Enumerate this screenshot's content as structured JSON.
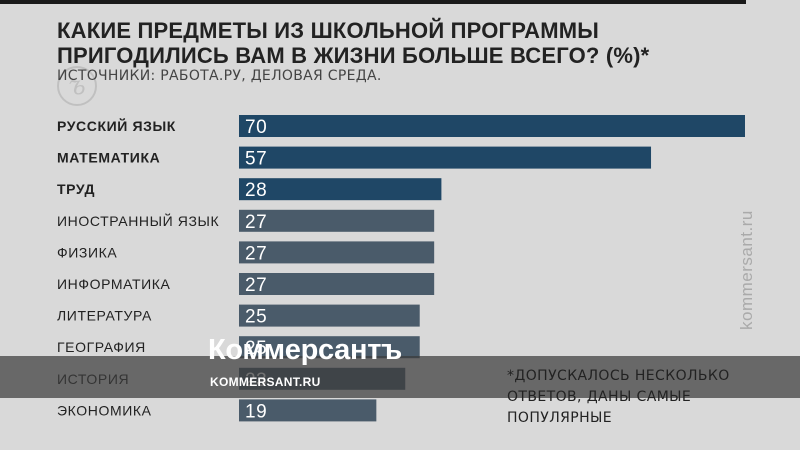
{
  "title_line1": "КАКИЕ ПРЕДМЕТЫ ИЗ ШКОЛЬНОЙ ПРОГРАММЫ",
  "title_line2": "ПРИГОДИЛИСЬ ВАМ В ЖИЗНИ БОЛЬШЕ ВСЕГО? (%)*",
  "subtitle": "ИСТОЧНИКИ: РАБОТА.РУ, ДЕЛОВАЯ СРЕДА.",
  "watermark_side": "kommersant.ru",
  "band": {
    "brand": "Коммерсантъ",
    "url": "KOMMERSANT.RU"
  },
  "footnote": [
    "*ДОПУСКАЛОСЬ НЕСКОЛЬКО",
    "ОТВЕТОВ, ДАНЫ САМЫЕ",
    "ПОПУЛЯРНЫЕ"
  ],
  "colors": {
    "top3": "#1f4766",
    "rest": "#4a5b6a"
  },
  "chart_data": {
    "type": "bar",
    "orientation": "horizontal",
    "categories": [
      "РУССКИЙ ЯЗЫК",
      "МАТЕМАТИКА",
      "ТРУД",
      "ИНОСТРАННЫЙ ЯЗЫК",
      "ФИЗИКА",
      "ИНФОРМАТИКА",
      "ЛИТЕРАТУРА",
      "ГЕОГРАФИЯ",
      "ИСТОРИЯ",
      "ЭКОНОМИКА"
    ],
    "values": [
      70,
      57,
      28,
      27,
      27,
      27,
      25,
      25,
      23,
      19
    ],
    "highlighted": [
      true,
      true,
      true,
      false,
      false,
      false,
      false,
      false,
      false,
      false
    ],
    "xlim": [
      0,
      70
    ],
    "grid": false,
    "legend": "none"
  }
}
